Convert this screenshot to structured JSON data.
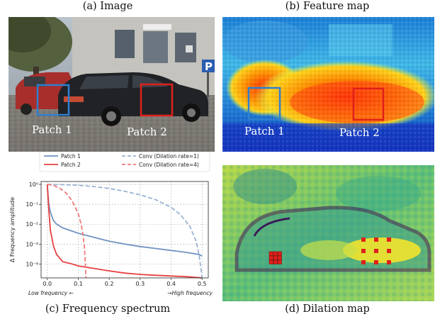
{
  "figure": {
    "captions": {
      "a": "(a) Image",
      "b": "(b) Feature map",
      "c": "(c) Frequency spectrum",
      "d": "(d) Dilation map"
    },
    "patch_labels": {
      "patch1": "Patch 1",
      "patch2": "Patch 2"
    },
    "colors": {
      "patch1": "#2f7fd0",
      "patch2": "#e0201a"
    },
    "sign": {
      "letter": "P"
    }
  },
  "chart_data": {
    "type": "line",
    "ylabel": "Δ Frequency amplitude",
    "y_scale": "log",
    "xlim": [
      -0.02,
      0.52
    ],
    "ylim": [
      2e-05,
      1.4
    ],
    "x_ticks": [
      "0.0",
      "0.1",
      "0.2",
      "0.3",
      "0.4",
      "0.5"
    ],
    "y_ticks": [
      "10⁰",
      "10⁻¹",
      "10⁻²",
      "10⁻³",
      "10⁻⁴"
    ],
    "x_annotations": {
      "low": "Low frequency ←",
      "high": "→High frequency"
    },
    "grid": true,
    "legend_position": "top-center",
    "series": [
      {
        "name": "Patch 1",
        "color": "#6f93c2",
        "style": "solid",
        "x": [
          0,
          0.005,
          0.01,
          0.02,
          0.03,
          0.05,
          0.08,
          0.1,
          0.15,
          0.2,
          0.25,
          0.3,
          0.35,
          0.4,
          0.45,
          0.49,
          0.5
        ],
        "y": [
          1,
          0.1,
          0.04,
          0.015,
          0.01,
          0.0065,
          0.0045,
          0.0035,
          0.0022,
          0.0014,
          0.001,
          0.00075,
          0.0006,
          0.00048,
          0.00038,
          0.0003,
          0.00025
        ]
      },
      {
        "name": "Patch 2",
        "color": "#e84040",
        "style": "solid",
        "x": [
          0,
          0.005,
          0.01,
          0.02,
          0.03,
          0.05,
          0.08,
          0.1,
          0.15,
          0.2,
          0.25,
          0.3,
          0.35,
          0.4,
          0.45,
          0.5
        ],
        "y": [
          1,
          0.05,
          0.005,
          0.0008,
          0.0003,
          0.00013,
          0.0001,
          8e-05,
          6e-05,
          4.5e-05,
          3.5e-05,
          3e-05,
          2.7e-05,
          2.5e-05,
          2.3e-05,
          2e-05
        ]
      },
      {
        "name": "Conv (Dilation rate=1)",
        "color": "#9ab4d4",
        "style": "dashed",
        "x": [
          0,
          0.05,
          0.1,
          0.15,
          0.2,
          0.25,
          0.3,
          0.35,
          0.4,
          0.43,
          0.46,
          0.48,
          0.49,
          0.5
        ],
        "y": [
          1,
          0.97,
          0.9,
          0.78,
          0.62,
          0.45,
          0.3,
          0.17,
          0.07,
          0.03,
          0.008,
          0.0015,
          0.0003,
          2e-05
        ]
      },
      {
        "name": "Conv (Dilation rate=4)",
        "color": "#ef7a7a",
        "style": "dashed",
        "x": [
          0,
          0.02,
          0.04,
          0.06,
          0.08,
          0.1,
          0.11,
          0.115,
          0.12,
          0.125
        ],
        "y": [
          1,
          0.88,
          0.65,
          0.38,
          0.15,
          0.035,
          0.009,
          0.003,
          0.0007,
          2e-05
        ]
      }
    ]
  }
}
